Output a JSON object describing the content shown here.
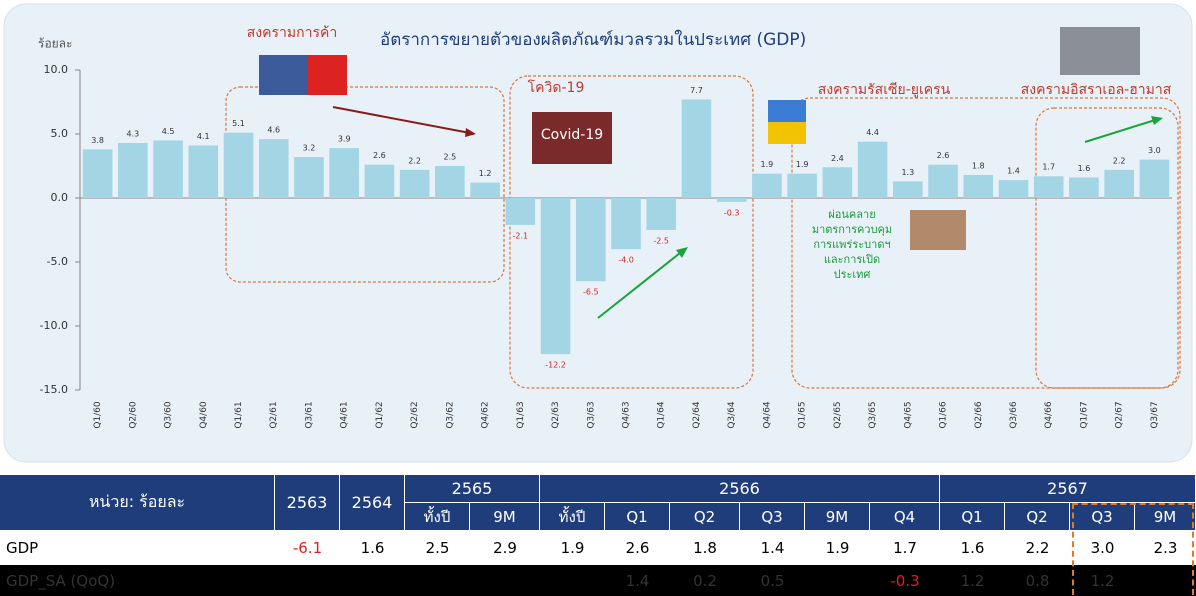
{
  "chart_data": {
    "type": "bar",
    "title": "อัตราการขยายตัวของผลิตภัณฑ์มวลรวมในประเทศ (GDP)",
    "y_label": "ร้อยละ",
    "categories": [
      "Q1/60",
      "Q2/60",
      "Q3/60",
      "Q4/60",
      "Q1/61",
      "Q2/61",
      "Q3/61",
      "Q4/61",
      "Q1/62",
      "Q2/62",
      "Q3/62",
      "Q4/62",
      "Q1/63",
      "Q2/63",
      "Q3/63",
      "Q4/63",
      "Q1/64",
      "Q2/64",
      "Q3/64",
      "Q4/64",
      "Q1/65",
      "Q2/65",
      "Q3/65",
      "Q4/65",
      "Q1/66",
      "Q2/66",
      "Q3/66",
      "Q4/66",
      "Q1/67",
      "Q2/67",
      "Q3/67"
    ],
    "values": [
      3.8,
      4.3,
      4.5,
      4.1,
      5.1,
      4.6,
      3.2,
      3.9,
      2.6,
      2.2,
      2.5,
      1.2,
      -2.1,
      -12.2,
      -6.5,
      -4.0,
      -2.5,
      7.7,
      -0.3,
      1.9,
      1.9,
      2.4,
      4.4,
      1.3,
      2.6,
      1.8,
      1.4,
      1.7,
      1.6,
      2.2,
      3.0
    ],
    "value_labels": [
      "3.8",
      "4.3",
      "4.5",
      "4.1",
      "5.1",
      "4.6",
      "3.2",
      "3.9",
      "2.6",
      "2.2",
      "2.5",
      "1.2",
      "-2.1",
      "-12.2",
      "-6.5",
      "-4.0",
      "-2.5",
      "7.7",
      "-0.3",
      "1.9",
      "1.9",
      "2.4",
      "4.4",
      "1.3",
      "2.6",
      "1.8",
      "1.4",
      "1.7",
      "1.6",
      "2.2",
      "3.0"
    ],
    "color": "#a3d5e4",
    "ylim": [
      -15,
      10
    ],
    "yticks": [
      {
        "value": 10,
        "label": "10.0"
      },
      {
        "value": 5,
        "label": "5.0"
      },
      {
        "value": 0,
        "label": "0.0"
      },
      {
        "value": -5,
        "label": "-5.0"
      },
      {
        "value": -10,
        "label": "-10.0"
      },
      {
        "value": -15,
        "label": "-15.0"
      }
    ],
    "annotations": [
      "สงครามการค้า",
      "โควิด-19",
      "สงครามรัสเซีย-ยูเครน",
      "สงครามอิสราเอล-ฮามาส",
      "Covid-19"
    ],
    "relief_note": [
      "ผ่อนคลาย",
      "มาตรการควบคุม",
      "การแพร่ระบาดฯ",
      "และการเปิด",
      "ประเทศ"
    ]
  },
  "table": {
    "header_top": [
      "หน่วย: ร้อยละ",
      "2563",
      "2564",
      "2565",
      "2566",
      "2567"
    ],
    "header_sub": [
      "ทั้งปี",
      "9M",
      "ทั้งปี",
      "Q1",
      "Q2",
      "Q3",
      "9M",
      "Q4",
      "Q1",
      "Q2",
      "Q3",
      "9M"
    ],
    "rows": [
      [
        "GDP",
        "-6.1",
        "1.6",
        "2.5",
        "2.9",
        "1.9",
        "2.6",
        "1.8",
        "1.4",
        "1.9",
        "1.7",
        "1.6",
        "2.2",
        "3.0",
        "2.3"
      ],
      [
        "GDP_SA (QoQ)",
        null,
        null,
        null,
        null,
        null,
        "1.4",
        "0.2",
        "0.5",
        null,
        "-0.3",
        "1.2",
        "0.8",
        "1.2",
        null
      ]
    ]
  }
}
